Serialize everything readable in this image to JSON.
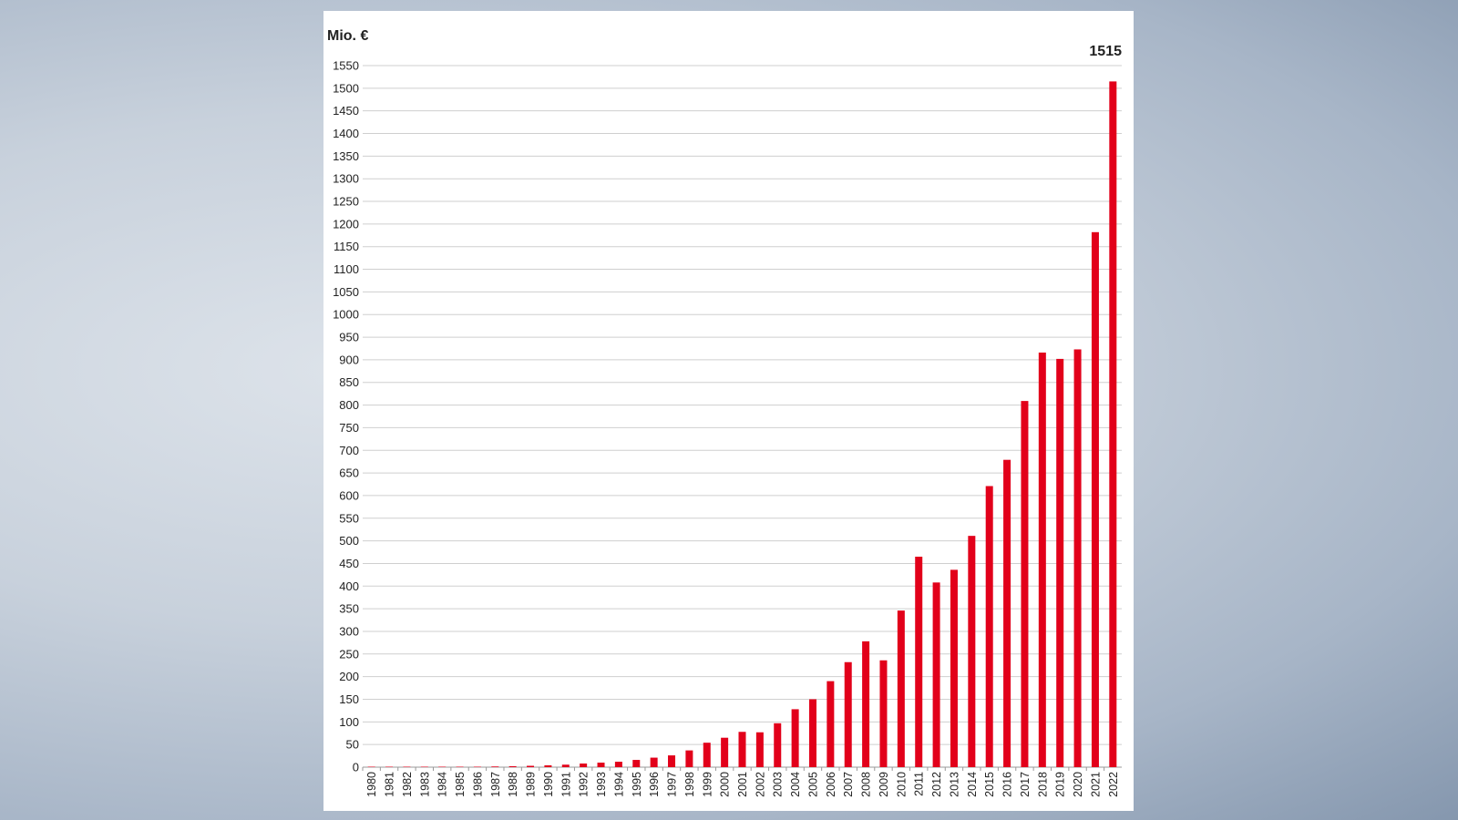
{
  "chart_data": {
    "type": "bar",
    "ylabel": "Mio. €",
    "ylim": [
      0,
      1550
    ],
    "ytick_step": 50,
    "grid": true,
    "bar_color": "#e2001a",
    "grid_color": "#cfcfcf",
    "categories": [
      "1980",
      "1981",
      "1982",
      "1983",
      "1984",
      "1985",
      "1986",
      "1987",
      "1988",
      "1989",
      "1990",
      "1991",
      "1992",
      "1993",
      "1994",
      "1995",
      "1996",
      "1997",
      "1998",
      "1999",
      "2000",
      "2001",
      "2002",
      "2003",
      "2004",
      "2005",
      "2006",
      "2007",
      "2008",
      "2009",
      "2010",
      "2011",
      "2012",
      "2013",
      "2014",
      "2015",
      "2016",
      "2017",
      "2018",
      "2019",
      "2020",
      "2021",
      "2022"
    ],
    "values": [
      0.1,
      0.2,
      0.3,
      0.4,
      0.5,
      0.7,
      1,
      1.5,
      2,
      3,
      4,
      5.5,
      8,
      10,
      12,
      16,
      21,
      26,
      37,
      54,
      65,
      78,
      77,
      97,
      128,
      150,
      190,
      232,
      278,
      236,
      346,
      465,
      408,
      436,
      511,
      621,
      679,
      809,
      916,
      902,
      923,
      1182,
      1515
    ],
    "annotations": [
      {
        "category": "2022",
        "label": "1515"
      }
    ]
  }
}
